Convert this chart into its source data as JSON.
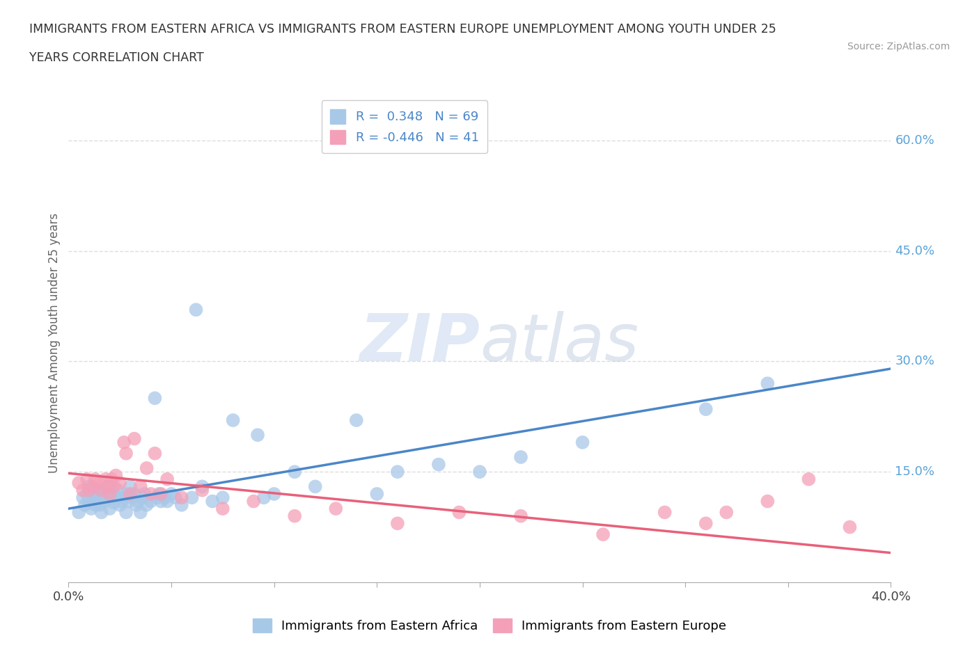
{
  "title_line1": "IMMIGRANTS FROM EASTERN AFRICA VS IMMIGRANTS FROM EASTERN EUROPE UNEMPLOYMENT AMONG YOUTH UNDER 25",
  "title_line2": "YEARS CORRELATION CHART",
  "source": "Source: ZipAtlas.com",
  "ylabel": "Unemployment Among Youth under 25 years",
  "xlim": [
    0.0,
    0.4
  ],
  "ylim": [
    0.0,
    0.65
  ],
  "xticks": [
    0.0,
    0.05,
    0.1,
    0.15,
    0.2,
    0.25,
    0.3,
    0.35,
    0.4
  ],
  "ytick_labels_right": [
    "15.0%",
    "30.0%",
    "45.0%",
    "60.0%"
  ],
  "ytick_vals_right": [
    0.15,
    0.3,
    0.45,
    0.6
  ],
  "r_africa": "0.348",
  "n_africa": "69",
  "r_europe": "-0.446",
  "n_europe": "41",
  "color_africa": "#a8c8e8",
  "color_europe": "#f4a0b8",
  "trend_color_africa": "#4a86c8",
  "trend_color_europe": "#e8607a",
  "right_label_color": "#5ba3d9",
  "legend_label_africa": "Immigrants from Eastern Africa",
  "legend_label_europe": "Immigrants from Eastern Europe",
  "scatter_africa_x": [
    0.005,
    0.007,
    0.008,
    0.009,
    0.01,
    0.01,
    0.011,
    0.012,
    0.013,
    0.013,
    0.014,
    0.015,
    0.015,
    0.016,
    0.017,
    0.018,
    0.019,
    0.02,
    0.02,
    0.021,
    0.022,
    0.022,
    0.023,
    0.024,
    0.025,
    0.026,
    0.027,
    0.028,
    0.028,
    0.029,
    0.03,
    0.031,
    0.032,
    0.033,
    0.034,
    0.035,
    0.036,
    0.037,
    0.038,
    0.04,
    0.042,
    0.043,
    0.044,
    0.045,
    0.047,
    0.048,
    0.05,
    0.052,
    0.055,
    0.06,
    0.062,
    0.065,
    0.07,
    0.075,
    0.08,
    0.092,
    0.095,
    0.1,
    0.11,
    0.12,
    0.14,
    0.15,
    0.16,
    0.18,
    0.2,
    0.22,
    0.25,
    0.31,
    0.34
  ],
  "scatter_africa_y": [
    0.095,
    0.115,
    0.105,
    0.12,
    0.11,
    0.13,
    0.1,
    0.12,
    0.105,
    0.115,
    0.125,
    0.105,
    0.115,
    0.095,
    0.125,
    0.11,
    0.12,
    0.13,
    0.1,
    0.115,
    0.12,
    0.108,
    0.115,
    0.125,
    0.105,
    0.11,
    0.115,
    0.12,
    0.095,
    0.11,
    0.13,
    0.115,
    0.12,
    0.105,
    0.11,
    0.095,
    0.115,
    0.12,
    0.105,
    0.11,
    0.25,
    0.115,
    0.12,
    0.11,
    0.115,
    0.11,
    0.12,
    0.115,
    0.105,
    0.115,
    0.37,
    0.13,
    0.11,
    0.115,
    0.22,
    0.2,
    0.115,
    0.12,
    0.15,
    0.13,
    0.22,
    0.12,
    0.15,
    0.16,
    0.15,
    0.17,
    0.19,
    0.235,
    0.27
  ],
  "scatter_europe_x": [
    0.005,
    0.007,
    0.009,
    0.01,
    0.012,
    0.013,
    0.015,
    0.016,
    0.018,
    0.019,
    0.02,
    0.021,
    0.022,
    0.023,
    0.025,
    0.027,
    0.028,
    0.03,
    0.032,
    0.035,
    0.038,
    0.04,
    0.042,
    0.045,
    0.048,
    0.055,
    0.065,
    0.075,
    0.09,
    0.11,
    0.13,
    0.16,
    0.19,
    0.22,
    0.26,
    0.29,
    0.31,
    0.32,
    0.34,
    0.36,
    0.38
  ],
  "scatter_europe_y": [
    0.135,
    0.125,
    0.14,
    0.125,
    0.13,
    0.14,
    0.135,
    0.125,
    0.14,
    0.13,
    0.12,
    0.14,
    0.13,
    0.145,
    0.135,
    0.19,
    0.175,
    0.12,
    0.195,
    0.13,
    0.155,
    0.12,
    0.175,
    0.12,
    0.14,
    0.115,
    0.125,
    0.1,
    0.11,
    0.09,
    0.1,
    0.08,
    0.095,
    0.09,
    0.065,
    0.095,
    0.08,
    0.095,
    0.11,
    0.14,
    0.075
  ],
  "africa_trend_x": [
    0.0,
    0.4
  ],
  "africa_trend_y": [
    0.1,
    0.29
  ],
  "europe_trend_x": [
    0.0,
    0.4
  ],
  "europe_trend_y": [
    0.148,
    0.04
  ],
  "watermark_zip": "ZIP",
  "watermark_atlas": "atlas",
  "background_color": "#ffffff",
  "grid_color": "#dddddd"
}
